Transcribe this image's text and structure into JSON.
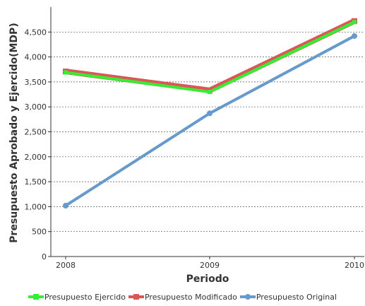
{
  "chart_data": {
    "type": "line",
    "categories": [
      "2008",
      "2009",
      "2010"
    ],
    "xlabel": "Periodo",
    "ylabel": "Presupuesto Aprobado y Ejercido(MDP)",
    "ylim": [
      0,
      5000
    ],
    "yticks": [
      0,
      500,
      1000,
      1500,
      2000,
      2500,
      3000,
      3500,
      4000,
      4500
    ],
    "ytick_labels": [
      "0",
      "500",
      "1,000",
      "1,500",
      "2,000",
      "2,500",
      "3,000",
      "3,500",
      "4,000",
      "4,500"
    ],
    "grid": true,
    "legend_position": "bottom",
    "series": [
      {
        "name": "Presupuesto Ejercido",
        "values": [
          3690,
          3300,
          4700
        ],
        "color": "#33ee33",
        "marker": "diamond"
      },
      {
        "name": "Presupuesto Modificado",
        "values": [
          3710,
          3330,
          4720
        ],
        "color": "#dd5555",
        "marker": "square"
      },
      {
        "name": "Presupuesto Original",
        "values": [
          1020,
          2870,
          4420
        ],
        "color": "#6699cc",
        "marker": "circle"
      }
    ]
  }
}
